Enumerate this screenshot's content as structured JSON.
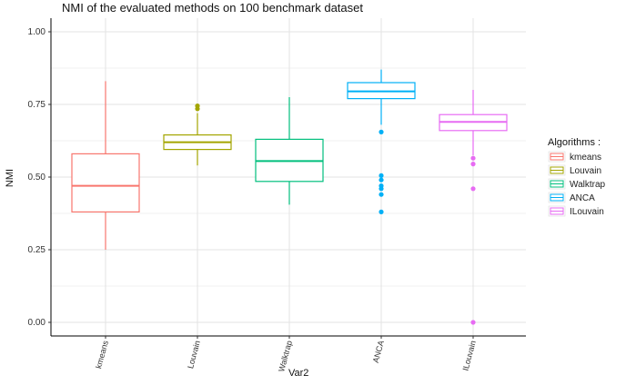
{
  "chart_data": {
    "type": "boxplot",
    "title": "NMI of the evaluated methods on 100 benchmark dataset",
    "xlabel": "Var2",
    "ylabel": "NMI",
    "ylim": [
      0,
      1.05
    ],
    "yticks": [
      "0.00",
      "0.25",
      "0.50",
      "0.75",
      "1.00"
    ],
    "grid": true,
    "legend": {
      "title": "Algorithms :",
      "placement": "right"
    },
    "categories": [
      "kmeans",
      "Louvain",
      "Walktrap",
      "ANCA",
      "ILouvain"
    ],
    "series": [
      {
        "name": "kmeans",
        "color": "#F8766D",
        "whisker_low": 0.25,
        "q1": 0.38,
        "median": 0.47,
        "q3": 0.58,
        "whisker_high": 0.83,
        "outliers": []
      },
      {
        "name": "Louvain",
        "color": "#A3A500",
        "whisker_low": 0.54,
        "q1": 0.595,
        "median": 0.62,
        "q3": 0.645,
        "whisker_high": 0.72,
        "outliers": [
          0.735,
          0.745
        ]
      },
      {
        "name": "Walktrap",
        "color": "#00BF7D",
        "whisker_low": 0.405,
        "q1": 0.485,
        "median": 0.555,
        "q3": 0.63,
        "whisker_high": 0.775,
        "outliers": []
      },
      {
        "name": "ANCA",
        "color": "#00B0F6",
        "whisker_low": 0.68,
        "q1": 0.77,
        "median": 0.795,
        "q3": 0.825,
        "whisker_high": 0.87,
        "outliers": [
          0.655,
          0.505,
          0.49,
          0.47,
          0.46,
          0.44,
          0.38
        ]
      },
      {
        "name": "ILouvain",
        "color": "#E76BF3",
        "whisker_low": 0.575,
        "q1": 0.66,
        "median": 0.69,
        "q3": 0.715,
        "whisker_high": 0.8,
        "outliers": [
          0.565,
          0.545,
          0.46,
          0.0
        ]
      }
    ]
  }
}
